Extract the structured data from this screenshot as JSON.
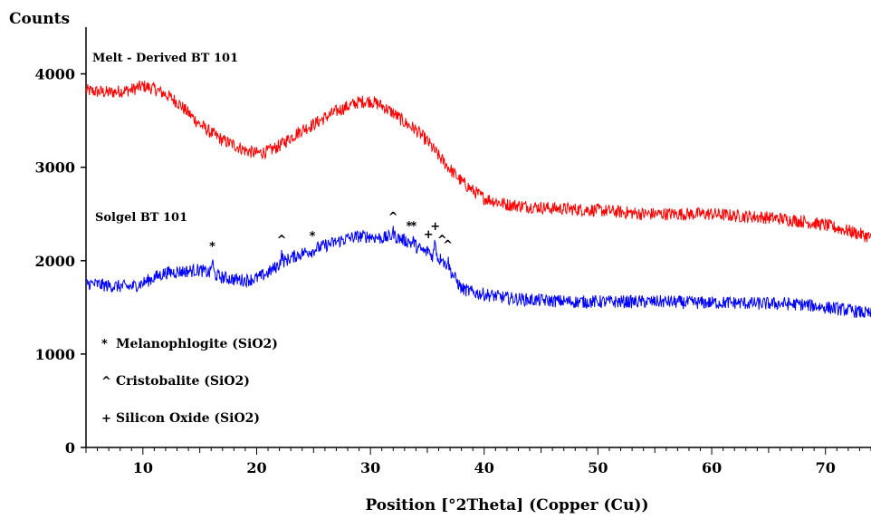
{
  "chart_data": {
    "type": "line",
    "xlabel": "Position [°2Theta] (Copper (Cu))",
    "ylabel": "Counts",
    "xlim": [
      5,
      74
    ],
    "ylim": [
      0,
      4500
    ],
    "x_ticks": [
      "10",
      "20",
      "30",
      "40",
      "50",
      "60",
      "70"
    ],
    "y_ticks": [
      "0",
      "1000",
      "2000",
      "3000",
      "4000"
    ],
    "grid": false,
    "series": [
      {
        "name": "Melt - Derived BT 101",
        "color": "#ff0000",
        "x": [
          5,
          7,
          9,
          10,
          11,
          12,
          13,
          14,
          15,
          16,
          17,
          18,
          19,
          20,
          21,
          22,
          23,
          24,
          25,
          26,
          27,
          28,
          29,
          30,
          31,
          32,
          33,
          34,
          35,
          36,
          37,
          38,
          39,
          40,
          42,
          44,
          46,
          48,
          50,
          52,
          54,
          56,
          58,
          60,
          62,
          64,
          66,
          68,
          70,
          72,
          74
        ],
        "y": [
          3820,
          3800,
          3830,
          3870,
          3840,
          3780,
          3700,
          3580,
          3460,
          3370,
          3290,
          3240,
          3180,
          3150,
          3170,
          3230,
          3320,
          3400,
          3460,
          3530,
          3600,
          3650,
          3700,
          3710,
          3660,
          3580,
          3480,
          3400,
          3280,
          3120,
          2980,
          2850,
          2750,
          2670,
          2600,
          2580,
          2560,
          2550,
          2540,
          2520,
          2500,
          2500,
          2500,
          2500,
          2480,
          2470,
          2450,
          2420,
          2380,
          2320,
          2250
        ]
      },
      {
        "name": "Solgel BT 101",
        "color": "#0000ff",
        "x": [
          5,
          7,
          9,
          10,
          11,
          12,
          13,
          14,
          15,
          16,
          17,
          18,
          19,
          20,
          21,
          22,
          23,
          24,
          25,
          26,
          27,
          28,
          29,
          30,
          31,
          32,
          33,
          34,
          35,
          36,
          37,
          38,
          39,
          40,
          42,
          44,
          46,
          48,
          50,
          52,
          54,
          56,
          58,
          60,
          62,
          64,
          66,
          68,
          70,
          72,
          74
        ],
        "y": [
          1760,
          1730,
          1720,
          1760,
          1820,
          1870,
          1880,
          1890,
          1900,
          1860,
          1820,
          1800,
          1790,
          1810,
          1870,
          1960,
          2030,
          2080,
          2120,
          2160,
          2200,
          2240,
          2260,
          2260,
          2240,
          2260,
          2220,
          2150,
          2080,
          2020,
          1900,
          1700,
          1660,
          1640,
          1600,
          1580,
          1570,
          1560,
          1560,
          1560,
          1560,
          1560,
          1550,
          1550,
          1550,
          1540,
          1540,
          1530,
          1500,
          1470,
          1430
        ]
      }
    ],
    "peaks": [
      {
        "x": 16.1,
        "y": 2110,
        "marker": "*"
      },
      {
        "x": 22.2,
        "y": 2180,
        "marker": "^"
      },
      {
        "x": 24.9,
        "y": 2220,
        "marker": "*"
      },
      {
        "x": 32.0,
        "y": 2430,
        "marker": "^"
      },
      {
        "x": 33.4,
        "y": 2330,
        "marker": "*"
      },
      {
        "x": 33.8,
        "y": 2330,
        "marker": "*"
      },
      {
        "x": 35.1,
        "y": 2240,
        "marker": "+"
      },
      {
        "x": 35.7,
        "y": 2330,
        "marker": "+"
      },
      {
        "x": 36.3,
        "y": 2180,
        "marker": "^"
      },
      {
        "x": 36.8,
        "y": 2130,
        "marker": "^"
      }
    ],
    "annotations": {
      "melt_label": "Melt - Derived BT 101",
      "solgel_label": "Solgel BT 101"
    },
    "legend": {
      "placement": "bottom-left",
      "items": [
        {
          "marker": "*",
          "label": "Melanophlogite (SiO2)"
        },
        {
          "marker": "^",
          "label": "Cristobalite (SiO2)"
        },
        {
          "marker": "+",
          "label": "Silicon Oxide (SiO2)"
        }
      ]
    }
  }
}
